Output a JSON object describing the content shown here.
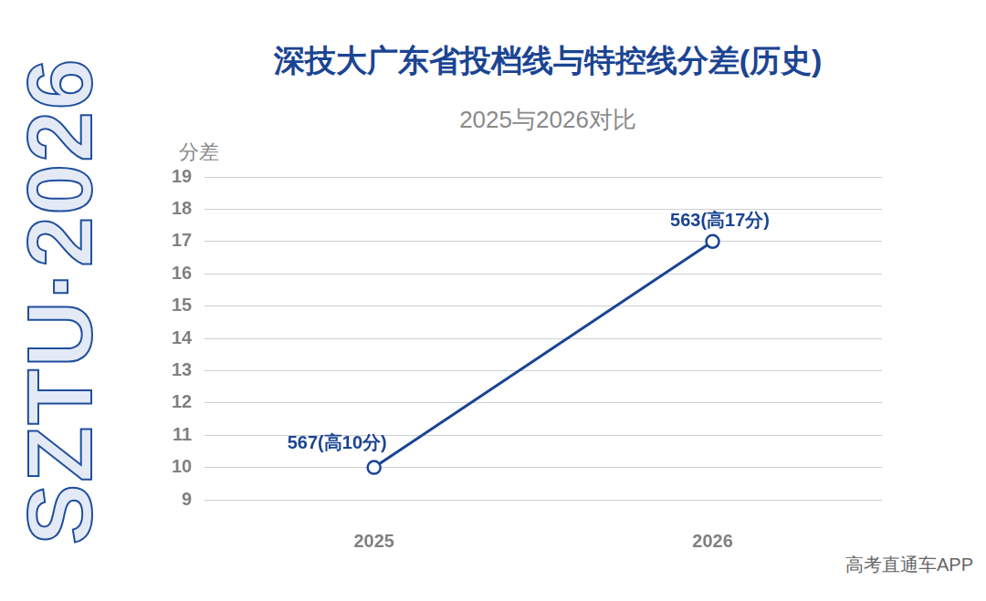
{
  "chart_data": {
    "type": "line",
    "title": "深技大广东省投档线与特控线分差(历史)",
    "subtitle": "2025与2026对比",
    "ylabel": "分差",
    "side_text": "SZTU·2026",
    "source": "高考直通车APP",
    "categories": [
      "2025",
      "2026"
    ],
    "values": [
      10,
      17
    ],
    "value_labels": [
      "567(高10分)",
      "563(高17分)"
    ],
    "data_labels": true,
    "color": "#1a4493",
    "marker": "circle",
    "line_style": "solid",
    "ylim": [
      9,
      19
    ],
    "yticks": [
      9,
      10,
      11,
      12,
      13,
      14,
      15,
      16,
      17,
      18,
      19
    ],
    "grid": true
  }
}
